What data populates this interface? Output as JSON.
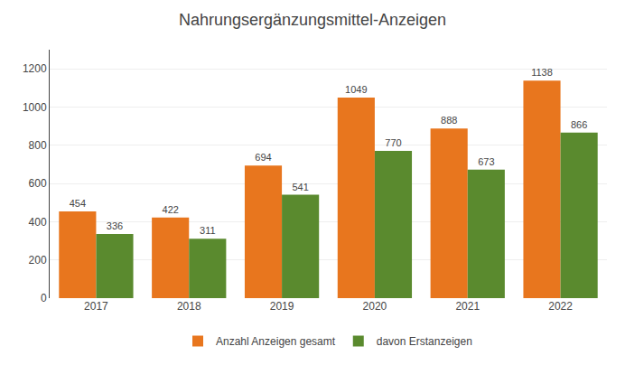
{
  "chart_data": {
    "type": "bar",
    "title": "Nahrungsergänzungsmittel-Anzeigen",
    "categories": [
      "2017",
      "2018",
      "2019",
      "2020",
      "2021",
      "2022"
    ],
    "series": [
      {
        "name": "Anzahl Anzeigen gesamt",
        "color": "#E8761E",
        "values": [
          454,
          422,
          694,
          1049,
          888,
          1138
        ]
      },
      {
        "name": "davon Erstanzeigen",
        "color": "#5A8A2E",
        "values": [
          336,
          311,
          541,
          770,
          673,
          866
        ]
      }
    ],
    "ylim": [
      0,
      1300
    ],
    "yticks": [
      0,
      200,
      400,
      600,
      800,
      1000,
      1200
    ],
    "grid": true,
    "legend": "bottom",
    "data_labels": true
  }
}
